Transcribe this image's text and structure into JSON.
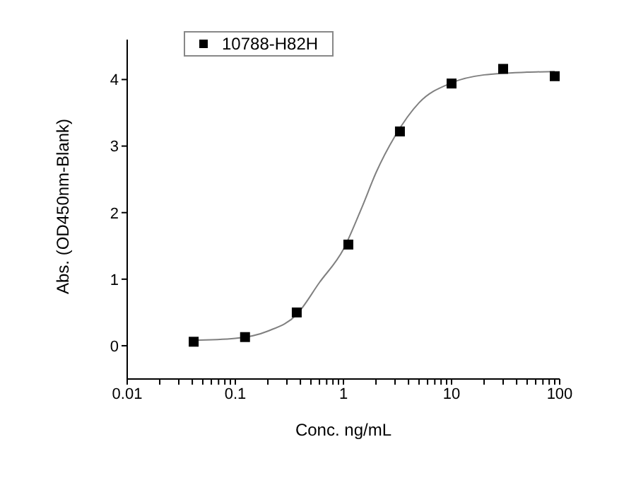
{
  "chart_data": {
    "type": "scatter",
    "xlabel": "Conc. ng/mL",
    "ylabel": "Abs. (OD450nm-Blank)",
    "log": "x",
    "xlim": [
      0.01,
      100
    ],
    "ylim": [
      -0.5,
      4.6
    ],
    "xticks": [
      0.01,
      {
        "value": 0.02,
        "label": null
      },
      {
        "value": 0.03,
        "label": null
      },
      {
        "value": 0.04,
        "label": null
      },
      {
        "value": 0.05,
        "label": null
      },
      {
        "value": 0.06,
        "label": null
      },
      {
        "value": 0.07,
        "label": null
      },
      {
        "value": 0.08,
        "label": null
      },
      {
        "value": 0.09,
        "label": null
      },
      0.1,
      {
        "value": 0.2,
        "label": null
      },
      {
        "value": 0.3,
        "label": null
      },
      {
        "value": 0.4,
        "label": null
      },
      {
        "value": 0.5,
        "label": null
      },
      {
        "value": 0.6,
        "label": null
      },
      {
        "value": 0.7,
        "label": null
      },
      {
        "value": 0.8,
        "label": null
      },
      {
        "value": 0.9,
        "label": null
      },
      1,
      {
        "value": 2,
        "label": null
      },
      {
        "value": 3,
        "label": null
      },
      {
        "value": 4,
        "label": null
      },
      {
        "value": 5,
        "label": null
      },
      {
        "value": 6,
        "label": null
      },
      {
        "value": 7,
        "label": null
      },
      {
        "value": 8,
        "label": null
      },
      {
        "value": 9,
        "label": null
      },
      10,
      {
        "value": 20,
        "label": null
      },
      {
        "value": 30,
        "label": null
      },
      {
        "value": 40,
        "label": null
      },
      {
        "value": 50,
        "label": null
      },
      {
        "value": 60,
        "label": null
      },
      {
        "value": 70,
        "label": null
      },
      {
        "value": 80,
        "label": null
      },
      {
        "value": 90,
        "label": null
      },
      100
    ],
    "yticks": [
      0,
      1,
      2,
      3,
      4
    ],
    "grid": false,
    "legend": "top left",
    "marker": "square",
    "series": [
      {
        "name": "10788-H82H",
        "color": "#000000",
        "x": [
          0.0412,
          0.123,
          0.37,
          1.11,
          3.33,
          10,
          30,
          90
        ],
        "values": [
          0.06,
          0.13,
          0.5,
          1.52,
          3.22,
          3.94,
          4.16,
          4.05
        ]
      },
      {
        "type": "line",
        "color": "#808080",
        "marker": "none",
        "line_style": "solid",
        "x": [
          0.04,
          0.1,
          0.2,
          0.37,
          0.6,
          1,
          1.5,
          2,
          3,
          5,
          10,
          20,
          50,
          90
        ],
        "values": [
          0.08,
          0.11,
          0.22,
          0.47,
          0.95,
          1.45,
          2.1,
          2.6,
          3.15,
          3.65,
          3.95,
          4.07,
          4.11,
          4.12
        ]
      }
    ]
  }
}
